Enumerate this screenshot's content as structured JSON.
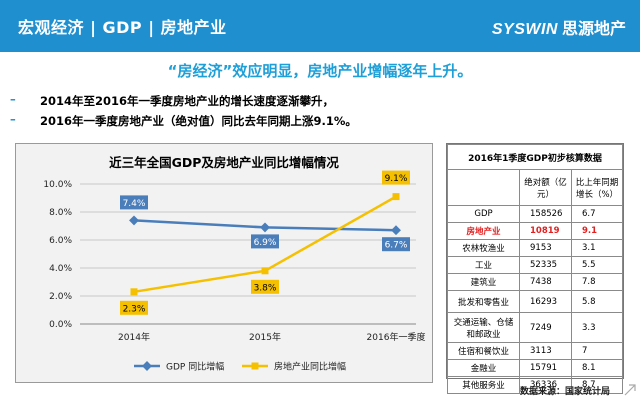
{
  "header": {
    "title": "宏观经济 | GDP | 房地产业",
    "logo_en": "SYSWIN",
    "logo_cn": "思源地产",
    "bg_color": "#1f8fd0"
  },
  "headline": "“房经济”效应明显，房地产业增幅逐年上升。",
  "bullets": [
    "2014年至2016年一季度房地产业的增长速度逐渐攀升，",
    "2016年一季度房地产业（绝对值）同比去年同期上涨9.1%。"
  ],
  "chart_data": {
    "type": "line",
    "title": "近三年全国GDP及房地产业同比增幅情况",
    "categories": [
      "2014年",
      "2015年",
      "2016年一季度"
    ],
    "y_tick_labels": [
      "0.0%",
      "2.0%",
      "4.0%",
      "6.0%",
      "8.0%",
      "10.0%"
    ],
    "ylim": [
      0,
      10
    ],
    "grid": true,
    "legend_position": "bottom",
    "series": [
      {
        "name": "GDP 同比增幅",
        "values": [
          7.4,
          6.9,
          6.7
        ],
        "labels": [
          "7.4%",
          "6.9%",
          "6.7%"
        ],
        "color": "#4a7ebb",
        "label_bg": "#4a7ebb",
        "marker": "diamond"
      },
      {
        "name": "房地产业同比增幅",
        "values": [
          2.3,
          3.8,
          9.1
        ],
        "labels": [
          "2.3%",
          "3.8%",
          "9.1%"
        ],
        "color": "#f5c000",
        "label_bg": "#f5c000",
        "marker": "square"
      }
    ]
  },
  "table": {
    "caption": "2016年1季度GDP初步核算数据",
    "headers": [
      "",
      "绝对额（亿元）",
      "比上年同期增长（%）"
    ],
    "rows": [
      {
        "name": "GDP",
        "value": "158526",
        "growth": "6.7",
        "highlight": false
      },
      {
        "name": "房地产业",
        "value": "10819",
        "growth": "9.1",
        "highlight": true
      },
      {
        "name": "农林牧渔业",
        "value": "9153",
        "growth": "3.1",
        "highlight": false
      },
      {
        "name": "工业",
        "value": "52335",
        "growth": "5.5",
        "highlight": false
      },
      {
        "name": "建筑业",
        "value": "7438",
        "growth": "7.8",
        "highlight": false
      },
      {
        "name": "批发和零售业",
        "value": "16293",
        "growth": "5.8",
        "highlight": false
      },
      {
        "name": "交通运输、仓储和邮政业",
        "value": "7249",
        "growth": "3.3",
        "highlight": false
      },
      {
        "name": "住宿和餐饮业",
        "value": "3113",
        "growth": "7",
        "highlight": false
      },
      {
        "name": "金融业",
        "value": "15791",
        "growth": "8.1",
        "highlight": false
      },
      {
        "name": "其他服务业",
        "value": "36336",
        "growth": "8.7",
        "highlight": false
      }
    ],
    "highlight_color": "#e32020"
  },
  "source": "数据来源：国家统计局"
}
